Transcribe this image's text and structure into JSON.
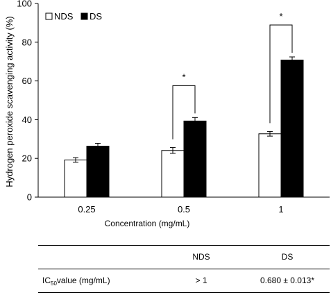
{
  "chart_data": {
    "type": "bar",
    "title": "",
    "xlabel": "Concentration (mg/mL)",
    "ylabel": "Hydrogen peroxide scavenging activity (%)",
    "ylim": [
      0,
      100
    ],
    "yticks": [
      0,
      20,
      40,
      60,
      80,
      100
    ],
    "categories": [
      "0.25",
      "0.5",
      "1"
    ],
    "series": [
      {
        "name": "NDS",
        "color": "#ffffff",
        "values": [
          19.2,
          24.1,
          32.7
        ],
        "errors": [
          1.2,
          1.5,
          1.2
        ]
      },
      {
        "name": "DS",
        "color": "#000000",
        "values": [
          26.3,
          39.3,
          70.8
        ],
        "errors": [
          1.5,
          1.8,
          1.6
        ]
      }
    ],
    "significance": [
      {
        "category": "0.5",
        "label": "*"
      },
      {
        "category": "1",
        "label": "*"
      }
    ],
    "legend": "top-left",
    "grid": false
  },
  "table": {
    "headers": [
      "",
      "NDS",
      "DS"
    ],
    "row": {
      "label_prefix": "IC",
      "label_subscript": "50",
      "label_suffix": "value (mg/mL)",
      "nds": "> 1",
      "ds": "0.680 ± 0.013*"
    }
  }
}
